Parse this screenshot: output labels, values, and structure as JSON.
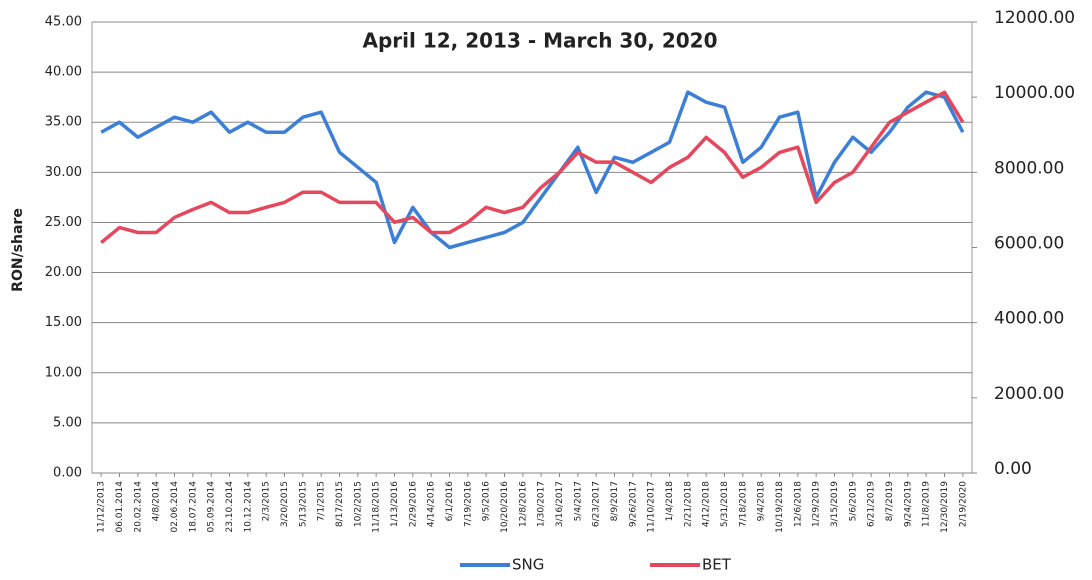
{
  "chart_data": {
    "type": "line",
    "title": "April 12, 2013 - March 30, 2020",
    "y_label": "RON/share",
    "categories": [
      "11/12/2013",
      "06.01.2014",
      "20.02.2014",
      "4/8/2014",
      "02.06.2014",
      "18.07.2014",
      "05.09.2014",
      "23.10.2014",
      "10.12.2014",
      "2/3/2015",
      "3/20/2015",
      "5/13/2015",
      "7/1/2015",
      "8/17/2015",
      "10/2/2015",
      "11/18/2015",
      "1/13/2016",
      "2/29/2016",
      "4/14/2016",
      "6/1/2016",
      "7/19/2016",
      "9/5/2016",
      "10/20/2016",
      "12/8/2016",
      "1/30/2017",
      "3/16/2017",
      "5/4/2017",
      "6/23/2017",
      "8/9/2017",
      "9/26/2017",
      "11/10/2017",
      "1/4/2018",
      "2/21/2018",
      "4/12/2018",
      "5/31/2018",
      "7/18/2018",
      "9/4/2018",
      "10/19/2018",
      "12/6/2018",
      "1/29/2019",
      "3/15/2019",
      "5/6/2019",
      "6/21/2019",
      "8/7/2019",
      "9/24/2019",
      "11/8/2019",
      "12/30/2019",
      "2/19/2020"
    ],
    "series": [
      {
        "name": "SNG",
        "color": "#3b7fd6",
        "values": [
          34,
          35,
          33.5,
          34.5,
          35.5,
          35,
          36,
          34,
          35,
          34,
          34,
          35.5,
          36,
          32,
          30.5,
          29,
          23,
          26.5,
          24,
          22.5,
          23,
          23.5,
          24,
          25,
          27.5,
          30,
          32.5,
          28,
          31.5,
          31,
          32,
          33,
          38,
          37,
          36.5,
          31,
          32.5,
          35.5,
          36,
          27.5,
          31,
          33.5,
          32,
          34,
          36.5,
          38,
          37.5,
          34
        ]
      },
      {
        "name": "BET",
        "color": "#e6475d",
        "axis": "y2",
        "values": [
          6130,
          6530,
          6400,
          6400,
          6800,
          7010,
          7200,
          6930,
          6930,
          7070,
          7200,
          7470,
          7470,
          7200,
          7200,
          7200,
          6670,
          6800,
          6400,
          6400,
          6670,
          7070,
          6930,
          7070,
          7600,
          8000,
          8530,
          8270,
          8270,
          8000,
          7730,
          8130,
          8400,
          8930,
          8530,
          7870,
          8130,
          8530,
          8670,
          7200,
          7730,
          8000,
          8670,
          9330,
          9600,
          9870,
          10130,
          9330
        ]
      }
    ],
    "ylim": [
      0,
      45
    ],
    "yticks": [
      {
        "value": 0,
        "label": "0.00"
      },
      {
        "value": 5,
        "label": "5.00"
      },
      {
        "value": 10,
        "label": "10.00"
      },
      {
        "value": 15,
        "label": "15.00"
      },
      {
        "value": 20,
        "label": "20.00"
      },
      {
        "value": 25,
        "label": "25.00"
      },
      {
        "value": 30,
        "label": "30.00"
      },
      {
        "value": 35,
        "label": "35.00"
      },
      {
        "value": 40,
        "label": "40.00"
      },
      {
        "value": 45,
        "label": "45.00"
      }
    ],
    "y2lim": [
      0,
      12000
    ],
    "y2ticks": [
      {
        "value": 0,
        "label": "0.00"
      },
      {
        "value": 2000,
        "label": "2000.00"
      },
      {
        "value": 4000,
        "label": "4000.00"
      },
      {
        "value": 6000,
        "label": "6000.00"
      },
      {
        "value": 8000,
        "label": "8000.00"
      },
      {
        "value": 10000,
        "label": "10000.00"
      },
      {
        "value": 12000,
        "label": "12000.00"
      }
    ],
    "grid": true
  }
}
